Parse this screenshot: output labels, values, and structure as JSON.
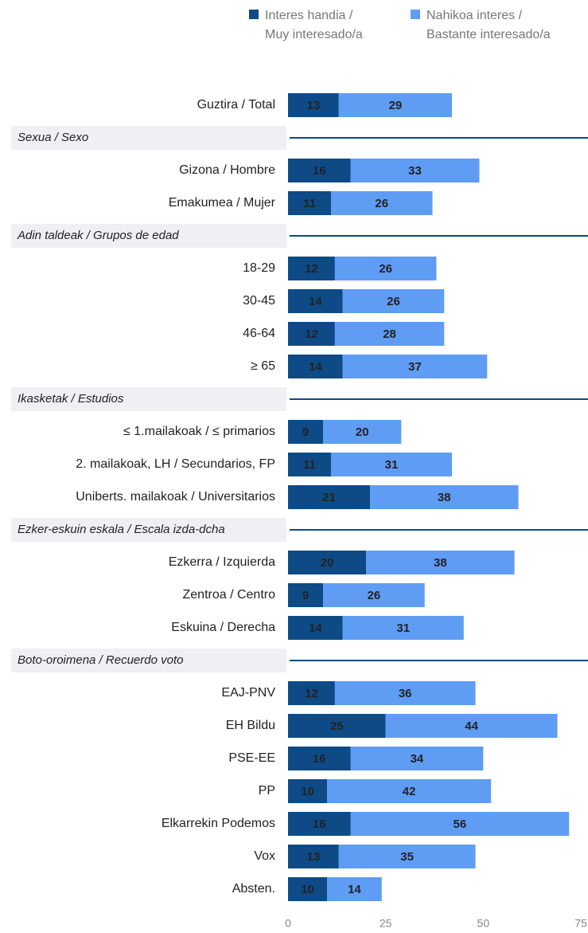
{
  "chart_data": {
    "type": "stacked-bar-horizontal",
    "categories": [
      "Guztira / Total",
      "Sexua / Sexo",
      "Gizona / Hombre",
      "Emakumea / Mujer",
      "Adin taldeak / Grupos de edad",
      "18-29",
      "30-45",
      "46-64",
      "≥ 65",
      "Ikasketak / Estudios",
      "≤ 1.mailakoak / ≤ primarios",
      "2. mailakoak, LH / Secundarios, FP",
      "Uniberts. mailakoak / Universitarios",
      "Ezker-eskuin eskala / Escala izda-dcha",
      "Ezkerra / Izquierda",
      "Zentroa / Centro",
      "Eskuina / Derecha",
      "Boto-oroimena / Recuerdo voto",
      "EAJ-PNV",
      "EH Bildu",
      "PSE-EE",
      "PP",
      "Elkarrekin Podemos",
      "Vox",
      "Absten."
    ],
    "series": [
      {
        "name": "Interes handia / Muy interesado/a",
        "color": "#0d4a86",
        "values": [
          13,
          null,
          16,
          11,
          null,
          12,
          14,
          12,
          14,
          null,
          9,
          11,
          21,
          null,
          20,
          9,
          14,
          null,
          12,
          25,
          16,
          10,
          16,
          13,
          10
        ]
      },
      {
        "name": "Nahikoa interes / Bastante interesado/a",
        "color": "#5f9cf4",
        "values": [
          29,
          null,
          33,
          26,
          null,
          26,
          26,
          28,
          37,
          null,
          20,
          31,
          38,
          null,
          38,
          26,
          31,
          null,
          36,
          44,
          34,
          42,
          56,
          35,
          14
        ]
      }
    ],
    "xlim": [
      0,
      75
    ],
    "xticks": [
      0,
      25,
      50,
      75
    ],
    "legend": "top"
  }
}
